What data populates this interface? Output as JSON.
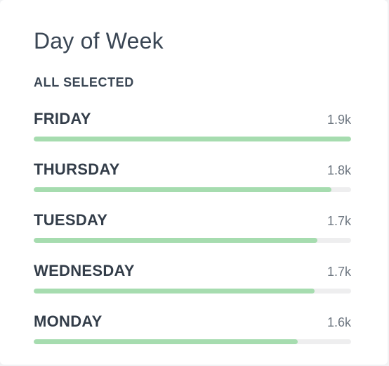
{
  "panel": {
    "title": "Day of Week",
    "filter_label": "ALL SELECTED"
  },
  "days": [
    {
      "label": "FRIDAY",
      "value": "1.9k",
      "fraction": 1.0
    },
    {
      "label": "THURSDAY",
      "value": "1.8k",
      "fraction": 0.938
    },
    {
      "label": "TUESDAY",
      "value": "1.7k",
      "fraction": 0.894
    },
    {
      "label": "WEDNESDAY",
      "value": "1.7k",
      "fraction": 0.885
    },
    {
      "label": "MONDAY",
      "value": "1.6k",
      "fraction": 0.832
    }
  ],
  "colors": {
    "bar_fill": "#a6dcaf",
    "bar_track": "#eeeeef"
  }
}
